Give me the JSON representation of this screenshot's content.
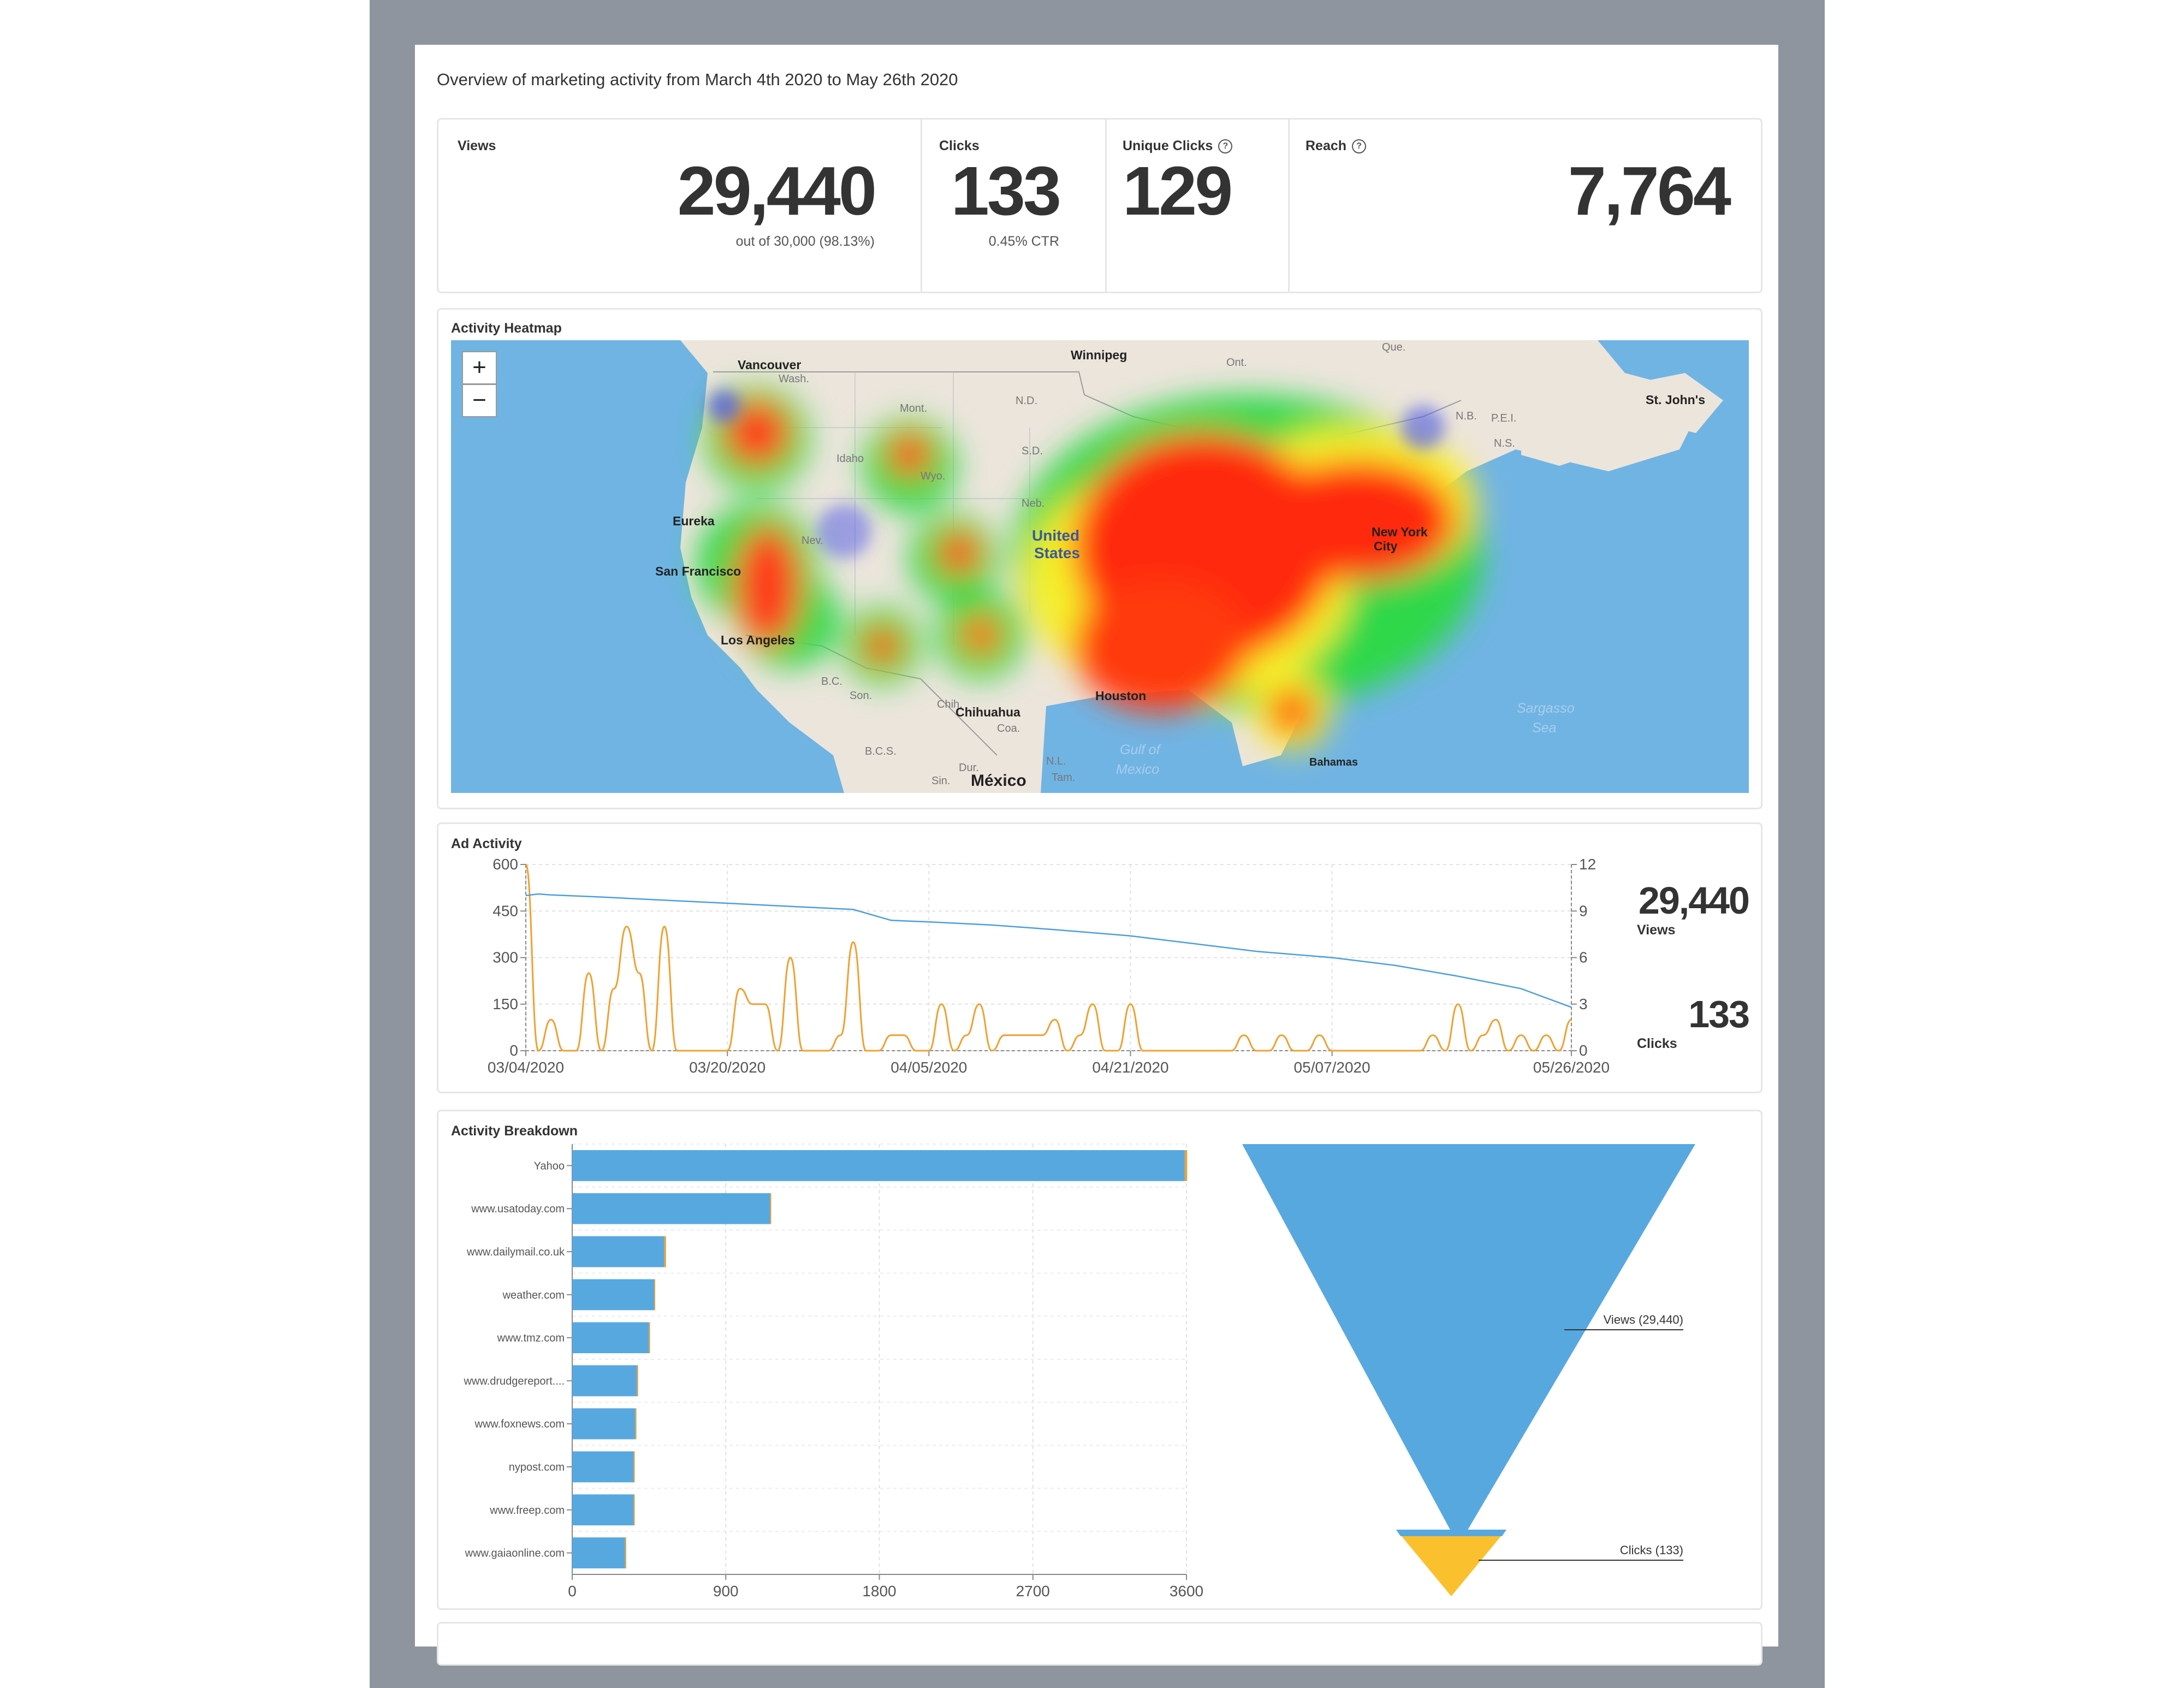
{
  "intro": "Overview of marketing activity from March 4th 2020 to May 26th 2020",
  "stats": {
    "views": {
      "label": "Views",
      "value": "29,440",
      "sub": "out of 30,000 (98.13%)"
    },
    "clicks": {
      "label": "Clicks",
      "value": "133",
      "sub": "0.45% CTR"
    },
    "unique_clicks": {
      "label": "Unique Clicks",
      "value": "129",
      "icon": "help-circle-icon"
    },
    "reach": {
      "label": "Reach",
      "value": "7,764",
      "icon": "help-circle-icon"
    }
  },
  "heatmap": {
    "title": "Activity Heatmap",
    "zoom_in": "+",
    "zoom_out": "−",
    "labels": {
      "vancouver": "Vancouver",
      "winnipeg": "Winnipeg",
      "ont": "Ont.",
      "que": "Que.",
      "stjohns": "St. John's",
      "nb": "N.B.",
      "ns": "N.S.",
      "pei": "P.E.I.",
      "eureka": "Eureka",
      "sanfran": "San Francisco",
      "losang": "Los Angeles",
      "nev": "Nev.",
      "idaho": "Idaho",
      "mont": "Mont.",
      "wyo": "Wyo.",
      "nd": "N.D.",
      "sd": "S.D.",
      "neb": "Neb.",
      "wash": "Wash.",
      "us1": "United",
      "us2": "States",
      "ny1": "New York",
      "ny2": "City",
      "houston": "Houston",
      "chihuahua": "Chihuahua",
      "son": "Son.",
      "chih": "Chih.",
      "coa": "Coa.",
      "bc": "B.C.",
      "bcs": "B.C.S.",
      "sin": "Sin.",
      "dur": "Dur.",
      "nl": "N.L.",
      "tam": "Tam.",
      "mexico": "México",
      "gulf1": "Gulf of",
      "gulf2": "Mexico",
      "bahamas": "Bahamas",
      "sarg1": "Sargasso",
      "sarg2": "Sea"
    }
  },
  "ad_activity": {
    "title": "Ad Activity",
    "views_total": "29,440",
    "views_label": "Views",
    "clicks_total": "133",
    "clicks_label": "Clicks"
  },
  "breakdown": {
    "title": "Activity Breakdown",
    "funnel": {
      "views_label": "Views (29,440)",
      "clicks_label": "Clicks (133)",
      "views_color": "#58a8e0",
      "clicks_color": "#fbc02d"
    }
  },
  "chart_data": [
    {
      "type": "line",
      "title": "Ad Activity",
      "x_ticks": [
        "03/04/2020",
        "03/20/2020",
        "04/05/2020",
        "04/21/2020",
        "05/07/2020",
        "05/26/2020"
      ],
      "y_left_ticks": [
        0,
        150,
        300,
        450,
        600
      ],
      "y_right_ticks": [
        0,
        3,
        6,
        9,
        12
      ],
      "ylim_left": [
        0,
        600
      ],
      "ylim_right": [
        0,
        12
      ],
      "x_range": [
        "2020-03-04",
        "2020-05-26"
      ],
      "grid": true,
      "series": [
        {
          "name": "Views",
          "axis": "left",
          "color": "#4a9fdf",
          "dates": [
            "2020-03-04",
            "2020-03-05",
            "2020-03-06",
            "2020-03-10",
            "2020-03-15",
            "2020-03-20",
            "2020-03-25",
            "2020-03-30",
            "2020-04-02",
            "2020-04-05",
            "2020-04-10",
            "2020-04-15",
            "2020-04-21",
            "2020-04-26",
            "2020-05-01",
            "2020-05-07",
            "2020-05-12",
            "2020-05-17",
            "2020-05-22",
            "2020-05-26"
          ],
          "values": [
            500,
            505,
            502,
            495,
            485,
            475,
            465,
            455,
            420,
            415,
            405,
            390,
            370,
            345,
            320,
            300,
            275,
            240,
            200,
            140
          ]
        },
        {
          "name": "Clicks",
          "axis": "right",
          "color": "#f0a030",
          "dates": [
            "2020-03-04",
            "2020-03-05",
            "2020-03-06",
            "2020-03-07",
            "2020-03-08",
            "2020-03-09",
            "2020-03-10",
            "2020-03-11",
            "2020-03-12",
            "2020-03-13",
            "2020-03-14",
            "2020-03-15",
            "2020-03-16",
            "2020-03-17",
            "2020-03-18",
            "2020-03-19",
            "2020-03-20",
            "2020-03-21",
            "2020-03-22",
            "2020-03-23",
            "2020-03-24",
            "2020-03-25",
            "2020-03-26",
            "2020-03-27",
            "2020-03-28",
            "2020-03-29",
            "2020-03-30",
            "2020-03-31",
            "2020-04-01",
            "2020-04-02",
            "2020-04-03",
            "2020-04-04",
            "2020-04-05",
            "2020-04-06",
            "2020-04-07",
            "2020-04-08",
            "2020-04-09",
            "2020-04-10",
            "2020-04-11",
            "2020-04-12",
            "2020-04-13",
            "2020-04-14",
            "2020-04-15",
            "2020-04-16",
            "2020-04-17",
            "2020-04-18",
            "2020-04-19",
            "2020-04-20",
            "2020-04-21",
            "2020-04-22",
            "2020-04-23",
            "2020-04-24",
            "2020-04-25",
            "2020-04-26",
            "2020-04-27",
            "2020-04-28",
            "2020-04-29",
            "2020-04-30",
            "2020-05-01",
            "2020-05-02",
            "2020-05-03",
            "2020-05-04",
            "2020-05-05",
            "2020-05-06",
            "2020-05-07",
            "2020-05-08",
            "2020-05-09",
            "2020-05-10",
            "2020-05-11",
            "2020-05-12",
            "2020-05-13",
            "2020-05-14",
            "2020-05-15",
            "2020-05-16",
            "2020-05-17",
            "2020-05-18",
            "2020-05-19",
            "2020-05-20",
            "2020-05-21",
            "2020-05-22",
            "2020-05-23",
            "2020-05-24",
            "2020-05-25",
            "2020-05-26"
          ],
          "values": [
            12,
            0,
            2,
            0,
            0,
            5,
            0,
            4,
            8,
            5,
            0,
            8,
            0,
            0,
            0,
            0,
            0,
            4,
            3,
            3,
            0,
            6,
            0,
            0,
            0,
            1,
            7,
            0,
            0,
            1,
            1,
            0,
            0,
            3,
            0,
            1,
            3,
            0,
            1,
            1,
            1,
            1,
            2,
            0,
            1,
            3,
            0,
            0,
            3,
            0,
            0,
            0,
            0,
            0,
            0,
            0,
            0,
            1,
            0,
            0,
            1,
            0,
            0,
            1,
            0,
            0,
            0,
            0,
            0,
            0,
            0,
            0,
            1,
            0,
            3,
            0,
            1,
            2,
            0,
            1,
            0,
            1,
            0,
            2
          ]
        }
      ]
    },
    {
      "type": "bar",
      "orientation": "horizontal",
      "title": "Activity Breakdown",
      "categories": [
        "Yahoo",
        "www.usatoday.com",
        "www.dailymail.co.uk",
        "weather.com",
        "www.tmz.com",
        "www.drudgereport....",
        "www.foxnews.com",
        "nypost.com",
        "www.freep.com",
        "www.gaiaonline.com"
      ],
      "x_ticks": [
        0,
        900,
        1800,
        2700,
        3600
      ],
      "xlim": [
        0,
        3600
      ],
      "grid": true,
      "series": [
        {
          "name": "Views",
          "color": "#58a8e0",
          "values": [
            3590,
            1160,
            540,
            480,
            450,
            380,
            370,
            360,
            360,
            310
          ]
        },
        {
          "name": "Clicks",
          "color": "#f0a030",
          "values": [
            14,
            5,
            10,
            1,
            1,
            1,
            1,
            1,
            1,
            1
          ]
        }
      ]
    },
    {
      "type": "funnel",
      "categories": [
        "Views",
        "Clicks"
      ],
      "values": [
        29440,
        133
      ]
    }
  ]
}
